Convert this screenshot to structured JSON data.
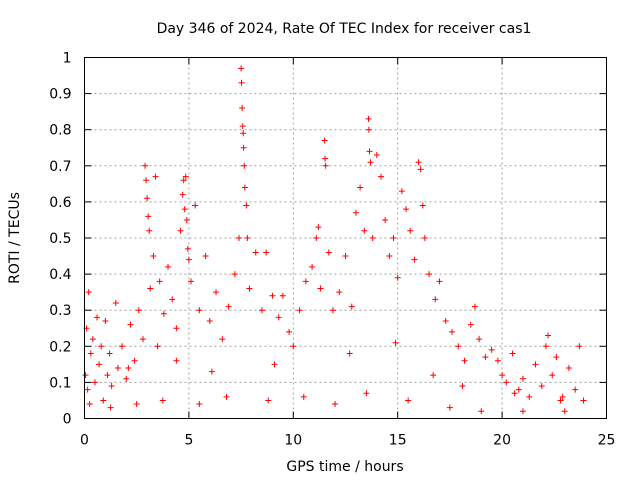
{
  "chart_data": {
    "type": "scatter",
    "title": "Day 346 of 2024, Rate Of TEC Index for receiver cas1",
    "xlabel": "GPS time / hours",
    "ylabel": "ROTI / TECUs",
    "xlim": [
      0,
      25
    ],
    "ylim": [
      0,
      1
    ],
    "xticks": [
      0,
      5,
      10,
      15,
      20,
      25
    ],
    "xtick_labels": [
      "0",
      "5",
      "10",
      "15",
      "20",
      "25"
    ],
    "yticks": [
      0,
      0.1,
      0.2,
      0.3,
      0.4,
      0.5,
      0.6,
      0.7,
      0.8,
      0.9,
      1
    ],
    "ytick_labels": [
      "0",
      "0.1",
      "0.2",
      "0.3",
      "0.4",
      "0.5",
      "0.6",
      "0.7",
      "0.8",
      "0.9",
      "1"
    ],
    "grid": true,
    "marker": "plus",
    "series_color": "#ff0000",
    "series": [
      {
        "name": "ROTI",
        "points": [
          [
            0.05,
            0.12
          ],
          [
            0.1,
            0.25
          ],
          [
            0.15,
            0.08
          ],
          [
            0.2,
            0.35
          ],
          [
            0.3,
            0.18
          ],
          [
            0.4,
            0.22
          ],
          [
            0.5,
            0.1
          ],
          [
            0.6,
            0.28
          ],
          [
            0.7,
            0.15
          ],
          [
            0.8,
            0.2
          ],
          [
            0.9,
            0.05
          ],
          [
            1.0,
            0.27
          ],
          [
            1.1,
            0.12
          ],
          [
            1.2,
            0.18
          ],
          [
            1.3,
            0.09
          ],
          [
            1.5,
            0.32
          ],
          [
            1.6,
            0.14
          ],
          [
            1.8,
            0.2
          ],
          [
            2.0,
            0.11
          ],
          [
            2.2,
            0.26
          ],
          [
            2.4,
            0.16
          ],
          [
            2.6,
            0.3
          ],
          [
            2.8,
            0.22
          ],
          [
            2.9,
            0.7
          ],
          [
            2.95,
            0.66
          ],
          [
            3.0,
            0.61
          ],
          [
            3.05,
            0.56
          ],
          [
            3.1,
            0.52
          ],
          [
            3.15,
            0.36
          ],
          [
            3.3,
            0.45
          ],
          [
            3.4,
            0.67
          ],
          [
            3.5,
            0.2
          ],
          [
            3.6,
            0.38
          ],
          [
            3.8,
            0.29
          ],
          [
            4.0,
            0.42
          ],
          [
            4.2,
            0.33
          ],
          [
            4.4,
            0.25
          ],
          [
            4.6,
            0.52
          ],
          [
            4.7,
            0.62
          ],
          [
            4.75,
            0.66
          ],
          [
            4.8,
            0.58
          ],
          [
            4.85,
            0.67
          ],
          [
            4.9,
            0.55
          ],
          [
            4.95,
            0.47
          ],
          [
            5.0,
            0.44
          ],
          [
            5.1,
            0.38
          ],
          [
            5.3,
            0.59
          ],
          [
            5.5,
            0.3
          ],
          [
            5.8,
            0.45
          ],
          [
            6.0,
            0.27
          ],
          [
            6.3,
            0.35
          ],
          [
            6.6,
            0.22
          ],
          [
            6.9,
            0.31
          ],
          [
            7.2,
            0.4
          ],
          [
            7.4,
            0.5
          ],
          [
            7.5,
            0.97
          ],
          [
            7.52,
            0.93
          ],
          [
            7.55,
            0.86
          ],
          [
            7.58,
            0.81
          ],
          [
            7.6,
            0.79
          ],
          [
            7.62,
            0.75
          ],
          [
            7.65,
            0.7
          ],
          [
            7.68,
            0.64
          ],
          [
            7.75,
            0.59
          ],
          [
            7.8,
            0.5
          ],
          [
            7.9,
            0.36
          ],
          [
            8.2,
            0.46
          ],
          [
            8.5,
            0.3
          ],
          [
            8.7,
            0.46
          ],
          [
            9.0,
            0.34
          ],
          [
            9.3,
            0.28
          ],
          [
            9.5,
            0.34
          ],
          [
            9.8,
            0.24
          ],
          [
            10.0,
            0.2
          ],
          [
            10.3,
            0.3
          ],
          [
            10.6,
            0.38
          ],
          [
            10.9,
            0.42
          ],
          [
            11.1,
            0.5
          ],
          [
            11.2,
            0.53
          ],
          [
            11.3,
            0.36
          ],
          [
            11.5,
            0.77
          ],
          [
            11.52,
            0.72
          ],
          [
            11.55,
            0.7
          ],
          [
            11.7,
            0.46
          ],
          [
            11.9,
            0.3
          ],
          [
            12.2,
            0.35
          ],
          [
            12.5,
            0.45
          ],
          [
            12.8,
            0.31
          ],
          [
            13.0,
            0.57
          ],
          [
            13.2,
            0.64
          ],
          [
            13.4,
            0.52
          ],
          [
            13.6,
            0.83
          ],
          [
            13.62,
            0.8
          ],
          [
            13.65,
            0.74
          ],
          [
            13.7,
            0.71
          ],
          [
            13.8,
            0.5
          ],
          [
            14.0,
            0.73
          ],
          [
            14.2,
            0.67
          ],
          [
            14.4,
            0.55
          ],
          [
            14.6,
            0.45
          ],
          [
            14.8,
            0.5
          ],
          [
            15.0,
            0.39
          ],
          [
            15.2,
            0.63
          ],
          [
            15.4,
            0.58
          ],
          [
            15.6,
            0.52
          ],
          [
            15.8,
            0.44
          ],
          [
            16.0,
            0.71
          ],
          [
            16.1,
            0.69
          ],
          [
            16.2,
            0.59
          ],
          [
            16.3,
            0.5
          ],
          [
            16.5,
            0.4
          ],
          [
            16.8,
            0.33
          ],
          [
            17.0,
            0.38
          ],
          [
            17.3,
            0.27
          ],
          [
            17.6,
            0.24
          ],
          [
            17.9,
            0.2
          ],
          [
            18.2,
            0.16
          ],
          [
            18.5,
            0.26
          ],
          [
            18.7,
            0.31
          ],
          [
            18.9,
            0.22
          ],
          [
            19.2,
            0.17
          ],
          [
            19.5,
            0.19
          ],
          [
            19.8,
            0.16
          ],
          [
            20.0,
            0.12
          ],
          [
            20.2,
            0.1
          ],
          [
            20.5,
            0.18
          ],
          [
            20.8,
            0.08
          ],
          [
            21.0,
            0.11
          ],
          [
            21.3,
            0.06
          ],
          [
            21.6,
            0.15
          ],
          [
            21.9,
            0.09
          ],
          [
            22.1,
            0.2
          ],
          [
            22.2,
            0.23
          ],
          [
            22.4,
            0.12
          ],
          [
            22.6,
            0.17
          ],
          [
            22.9,
            0.06
          ],
          [
            23.2,
            0.14
          ],
          [
            23.5,
            0.08
          ],
          [
            23.7,
            0.2
          ],
          [
            23.9,
            0.05
          ],
          [
            0.25,
            0.04
          ],
          [
            1.25,
            0.03
          ],
          [
            2.5,
            0.04
          ],
          [
            3.75,
            0.05
          ],
          [
            5.5,
            0.04
          ],
          [
            6.8,
            0.06
          ],
          [
            8.8,
            0.05
          ],
          [
            10.5,
            0.06
          ],
          [
            12.0,
            0.04
          ],
          [
            13.5,
            0.07
          ],
          [
            15.5,
            0.05
          ],
          [
            17.5,
            0.03
          ],
          [
            19.0,
            0.02
          ],
          [
            21.0,
            0.02
          ],
          [
            23.0,
            0.02
          ],
          [
            2.1,
            0.14
          ],
          [
            4.4,
            0.16
          ],
          [
            6.1,
            0.13
          ],
          [
            9.1,
            0.15
          ],
          [
            12.7,
            0.18
          ],
          [
            14.9,
            0.21
          ],
          [
            16.7,
            0.12
          ],
          [
            18.1,
            0.09
          ],
          [
            20.6,
            0.07
          ],
          [
            22.8,
            0.05
          ]
        ]
      }
    ]
  }
}
